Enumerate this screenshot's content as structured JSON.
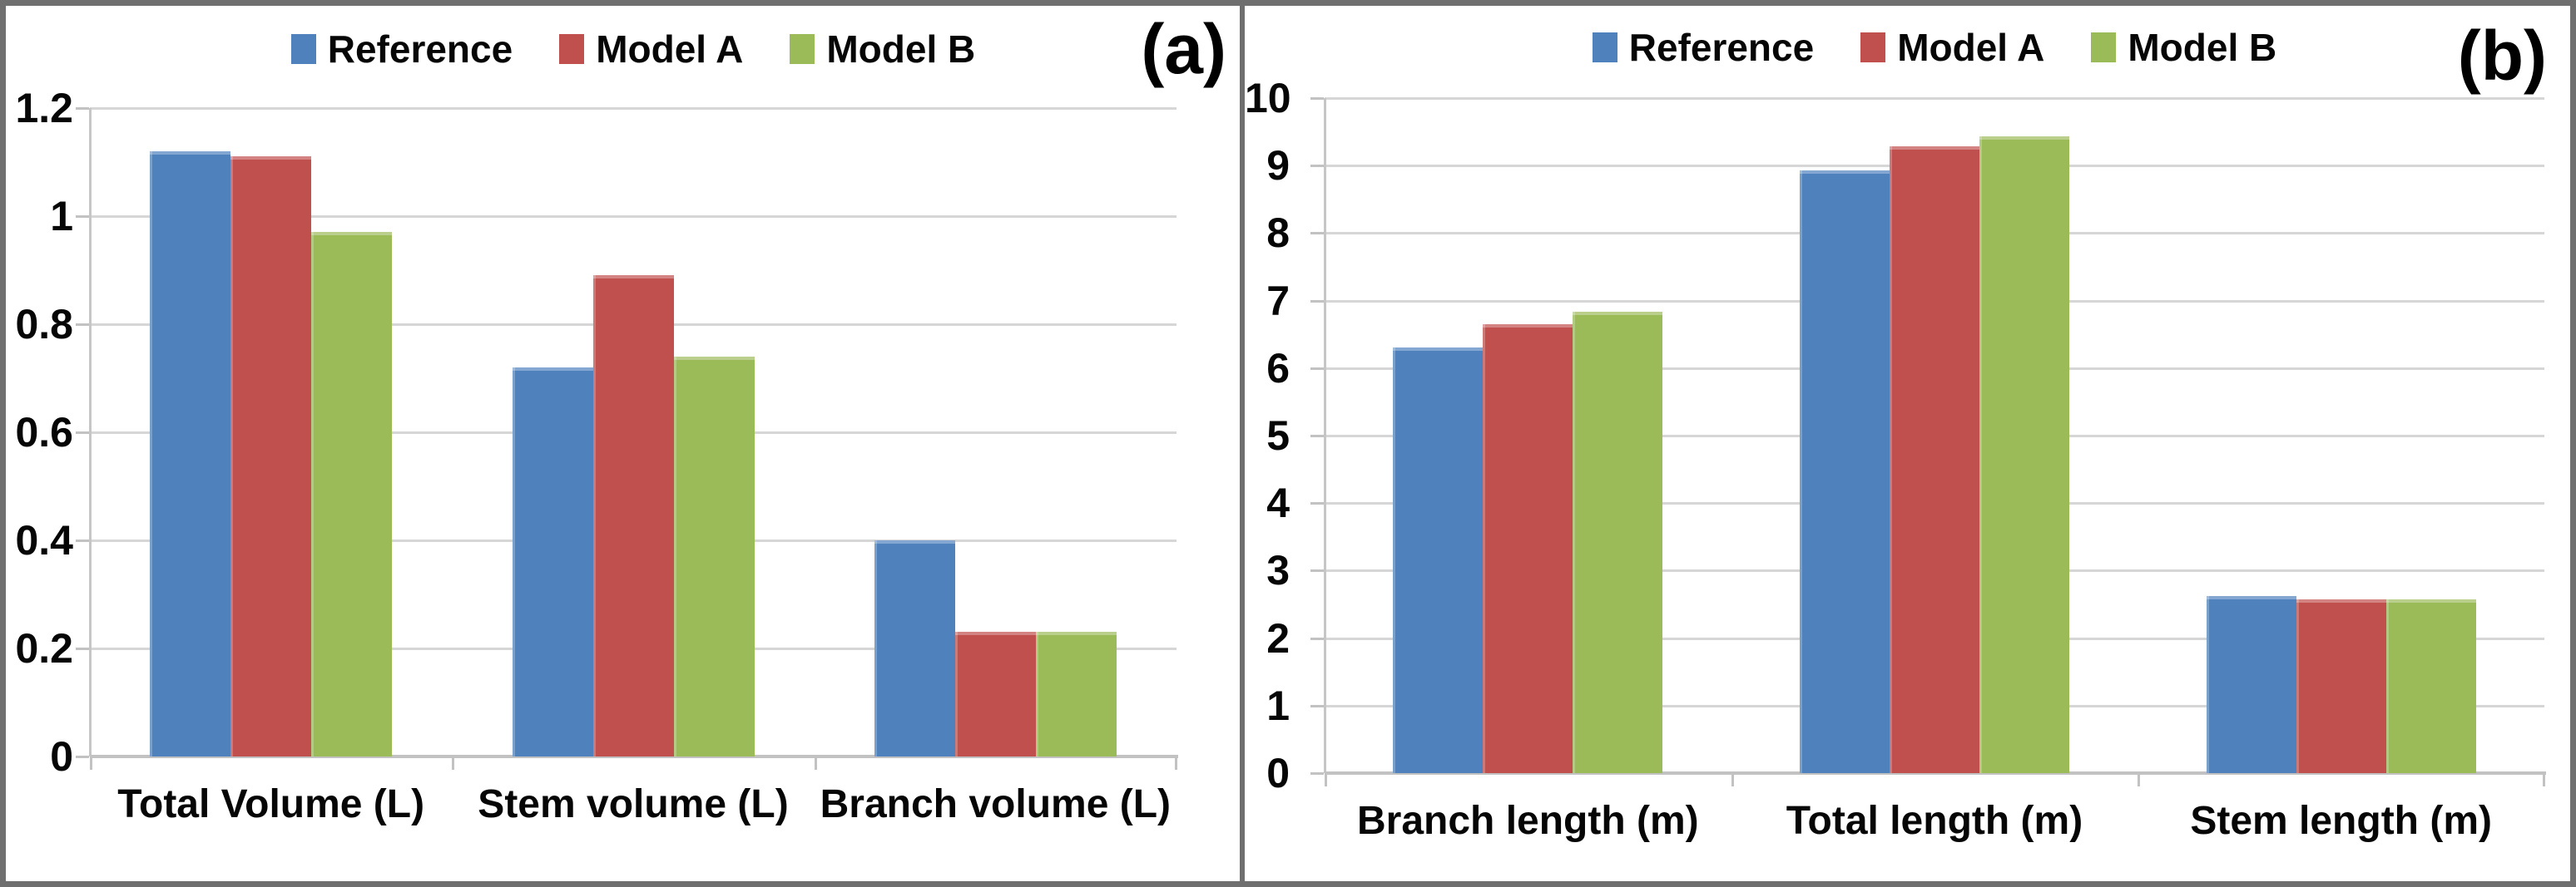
{
  "figure": {
    "series_colors": {
      "reference": "#4F81BD",
      "model_a": "#C0504D",
      "model_b": "#9BBB59"
    },
    "gridline_color": "#d6d6d6",
    "border_color": "#6f6f6f"
  },
  "chart_data": [
    {
      "type": "bar",
      "panel_label": "(a)",
      "title": "",
      "xlabel": "",
      "ylabel": "",
      "categories": [
        "Total Volume (L)",
        "Stem volume (L)",
        "Branch volume (L)"
      ],
      "series": [
        {
          "name": "Reference",
          "color": "#4F81BD",
          "values": [
            1.12,
            0.72,
            0.4
          ]
        },
        {
          "name": "Model A",
          "color": "#C0504D",
          "values": [
            1.11,
            0.89,
            0.23
          ]
        },
        {
          "name": "Model B",
          "color": "#9BBB59",
          "values": [
            0.97,
            0.74,
            0.23
          ]
        }
      ],
      "ylim": [
        0,
        1.2
      ],
      "ytick_step": 0.2,
      "ytick_labels": [
        "0",
        "0.2",
        "0.4",
        "0.6",
        "0.8",
        "1",
        "1.2"
      ],
      "grid": true,
      "legend_position": "top"
    },
    {
      "type": "bar",
      "panel_label": "(b)",
      "title": "",
      "xlabel": "",
      "ylabel": "",
      "categories": [
        "Branch length (m)",
        "Total length (m)",
        "Stem length (m)"
      ],
      "series": [
        {
          "name": "Reference",
          "color": "#4F81BD",
          "values": [
            6.3,
            8.93,
            2.62
          ]
        },
        {
          "name": "Model A",
          "color": "#C0504D",
          "values": [
            6.65,
            9.28,
            2.57
          ]
        },
        {
          "name": "Model B",
          "color": "#9BBB59",
          "values": [
            6.83,
            9.43,
            2.57
          ]
        }
      ],
      "ylim": [
        0,
        10
      ],
      "ytick_step": 1,
      "ytick_labels": [
        "0",
        "1",
        "2",
        "3",
        "4",
        "5",
        "6",
        "7",
        "8",
        "9",
        "10"
      ],
      "grid": true,
      "legend_position": "top"
    }
  ]
}
